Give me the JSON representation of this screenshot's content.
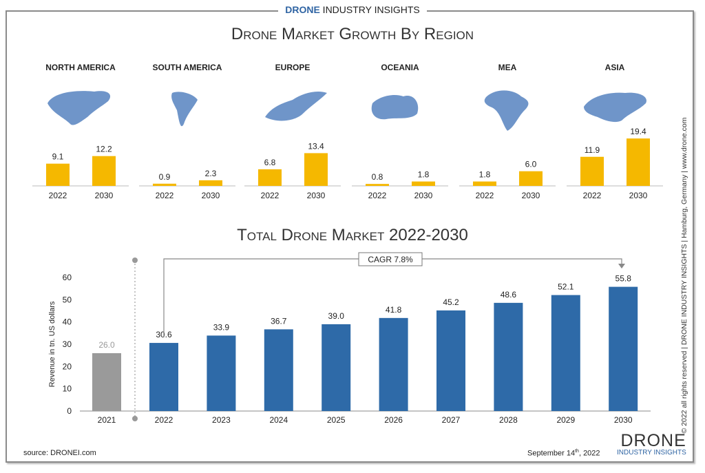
{
  "header": {
    "brand_bold": "DRONE",
    "brand_rest": " INDUSTRY INSIGHTS"
  },
  "colors": {
    "region_bar": "#f5b800",
    "total_bar": "#2e6aa8",
    "gray_bar": "#9a9a9a",
    "map": "#6f95c9"
  },
  "chart_data": [
    {
      "type": "bar",
      "title": "Drone Market Growth By Region",
      "categories": [
        "2022",
        "2030"
      ],
      "panels": [
        {
          "region": "NORTH AMERICA",
          "values": [
            9.1,
            12.2
          ]
        },
        {
          "region": "SOUTH AMERICA",
          "values": [
            0.9,
            2.3
          ]
        },
        {
          "region": "EUROPE",
          "values": [
            6.8,
            13.4
          ]
        },
        {
          "region": "OCEANIA",
          "values": [
            0.8,
            1.8
          ]
        },
        {
          "region": "MEA",
          "values": [
            1.8,
            6.0
          ]
        },
        {
          "region": "ASIA",
          "values": [
            11.9,
            19.4
          ]
        }
      ]
    },
    {
      "type": "bar",
      "title": "Total Drone Market 2022-2030",
      "ylabel": "Revenue in tn. US dollars",
      "ylim": [
        0,
        60
      ],
      "yticks": [
        0,
        10,
        20,
        30,
        40,
        50,
        60
      ],
      "categories": [
        "2021",
        "2022",
        "2023",
        "2024",
        "2025",
        "2026",
        "2027",
        "2028",
        "2029",
        "2030"
      ],
      "values": [
        26.0,
        30.6,
        33.9,
        36.7,
        39.0,
        41.8,
        45.2,
        48.6,
        52.1,
        55.8
      ],
      "annotation": "CAGR  7.8%"
    }
  ],
  "footer": {
    "source": "source: DRONEI.com",
    "date": "September 14",
    "date_sup": "th",
    "date_year": ", 2022",
    "logo_top": "DRONE",
    "logo_bottom": "INDUSTRY INSIGHTS",
    "side_text": "© 2022 all rights reserved  |  DRONE INDUSTRY INSIGHTS  |  Hamburg, Germany  |  www.drone.com"
  }
}
